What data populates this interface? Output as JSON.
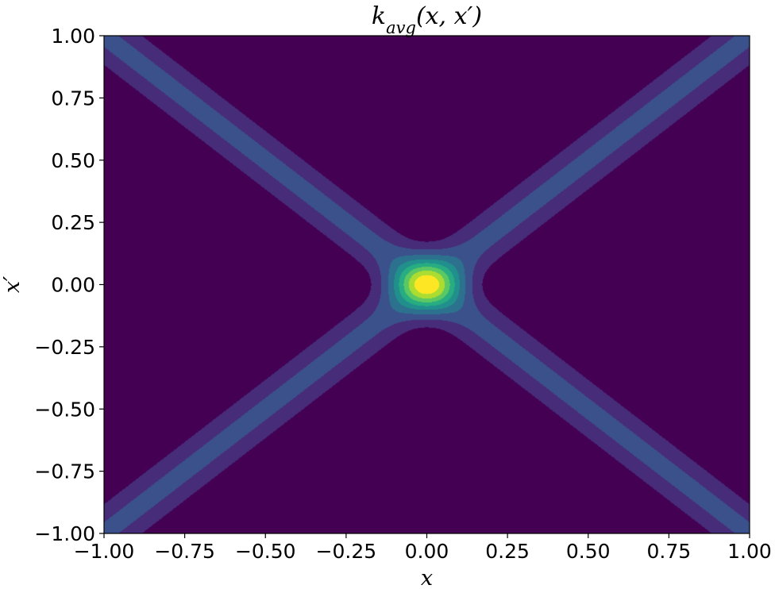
{
  "chart_data": {
    "type": "heatmap",
    "subtype": "filled-contour",
    "title": {
      "main": "k",
      "subscript": "avg",
      "args": "(x, x′)"
    },
    "xlabel": "x",
    "ylabel": "x′",
    "xlim": [
      -1.0,
      1.0
    ],
    "ylim": [
      -1.0,
      1.0
    ],
    "xticks": [
      -1.0,
      -0.75,
      -0.5,
      -0.25,
      0.0,
      0.25,
      0.5,
      0.75,
      1.0
    ],
    "xtick_labels": [
      "−1.00",
      "−0.75",
      "−0.50",
      "−0.25",
      "0.00",
      "0.25",
      "0.50",
      "0.75",
      "1.00"
    ],
    "yticks": [
      -1.0,
      -0.75,
      -0.5,
      -0.25,
      0.0,
      0.25,
      0.5,
      0.75,
      1.0
    ],
    "ytick_labels": [
      "−1.00",
      "−0.75",
      "−0.50",
      "−0.25",
      "0.00",
      "0.25",
      "0.50",
      "0.75",
      "1.00"
    ],
    "grid": false,
    "legend": "none",
    "colormap": "viridis",
    "contour_levels": 8,
    "field": {
      "description_of_shape": "sum of two Gaussian ridges along x'=x and x'=-x plus a central Gaussian peak",
      "ridge_width": 0.065,
      "ridge_amplitude": 0.5,
      "peak_width": 0.07,
      "peak_amplitude": 0.5
    },
    "level_colors": [
      "#440154",
      "#472c7a",
      "#3b518b",
      "#2c718e",
      "#21908d",
      "#27ad81",
      "#5cc863",
      "#aadc32",
      "#fde725"
    ]
  }
}
